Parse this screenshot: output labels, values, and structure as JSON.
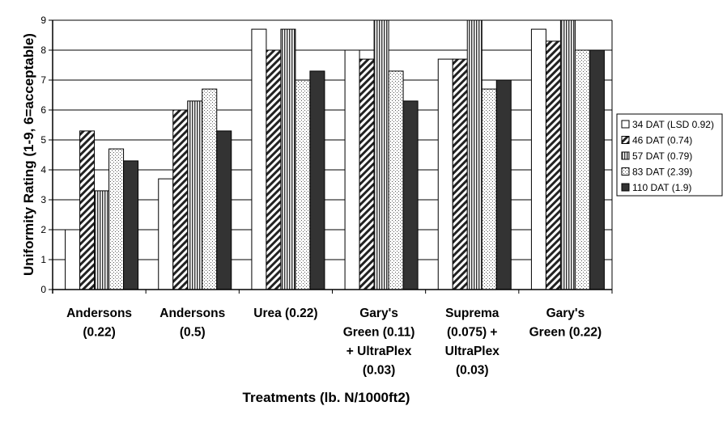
{
  "chart_data": {
    "type": "bar",
    "xlabel": "Treatments (lb. N/1000ft2)",
    "ylabel": "Uniformity Rating (1-9, 6=acceptable)",
    "ylim": [
      0,
      9
    ],
    "yticks": [
      "0",
      "1",
      "2",
      "3",
      "4",
      "5",
      "6",
      "7",
      "8",
      "9"
    ],
    "grid": true,
    "legend_position": "right",
    "categories": [
      [
        "Andersons",
        "(0.22)"
      ],
      [
        "Andersons",
        "(0.5)"
      ],
      [
        "Urea (0.22)"
      ],
      [
        "Gary's",
        "Green (0.11)",
        "+ UltraPlex",
        "(0.03)"
      ],
      [
        "Suprema",
        "(0.075) +",
        "UltraPlex",
        "(0.03)"
      ],
      [
        "Gary's",
        "Green (0.22)"
      ]
    ],
    "series": [
      {
        "name": "34 DAT (LSD 0.92)",
        "pattern": "white",
        "values": [
          2.0,
          3.7,
          8.7,
          8.0,
          7.7,
          8.7
        ]
      },
      {
        "name": "46 DAT (0.74)",
        "pattern": "diagonal",
        "values": [
          5.3,
          6.0,
          8.0,
          7.7,
          7.7,
          8.3
        ]
      },
      {
        "name": "57 DAT (0.79)",
        "pattern": "vertical",
        "values": [
          3.3,
          6.3,
          8.7,
          9.0,
          9.0,
          9.0
        ]
      },
      {
        "name": "83 DAT (2.39)",
        "pattern": "dots",
        "values": [
          4.7,
          6.7,
          7.0,
          7.3,
          6.7,
          8.0
        ]
      },
      {
        "name": "110 DAT (1.9)",
        "pattern": "dark",
        "values": [
          4.3,
          5.3,
          7.3,
          6.3,
          7.0,
          8.0
        ]
      }
    ],
    "colors": {
      "dark": "#333333",
      "stroke": "#000000",
      "background": "#ffffff"
    }
  }
}
